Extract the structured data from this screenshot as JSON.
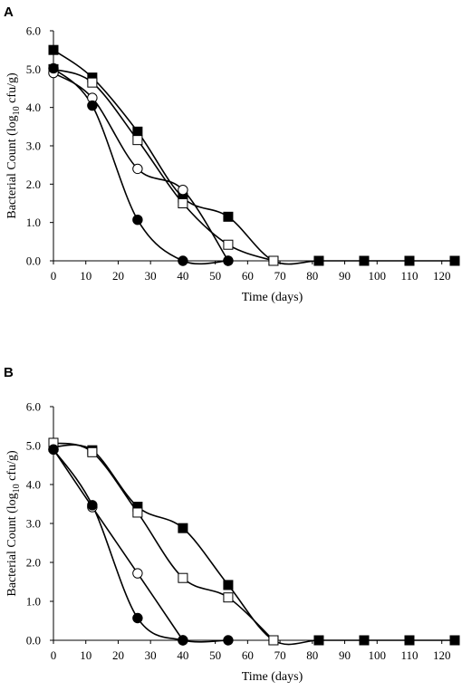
{
  "chart_data": [
    {
      "type": "line",
      "panel_label": "A",
      "xlabel": "Time (days)",
      "ylabel_main": "Bacterial Count (log",
      "ylabel_sub": "10",
      "ylabel_tail": " cfu/g)",
      "xlim": [
        0,
        124
      ],
      "ylim": [
        0,
        6
      ],
      "xticks": [
        "0",
        "10",
        "20",
        "30",
        "40",
        "50",
        "60",
        "70",
        "80",
        "90",
        "100",
        "110",
        "120"
      ],
      "yticks": [
        "0.0",
        "1.0",
        "2.0",
        "3.0",
        "4.0",
        "5.0",
        "6.0"
      ],
      "grid": false,
      "series": [
        {
          "marker": "filled-square",
          "x": [
            0,
            12,
            26,
            40,
            54,
            68,
            82,
            96,
            110,
            124
          ],
          "y": [
            5.5,
            4.78,
            3.37,
            1.65,
            1.15,
            0,
            0,
            0,
            0,
            0
          ]
        },
        {
          "marker": "open-square",
          "x": [
            0,
            12,
            26,
            40,
            54,
            68
          ],
          "y": [
            5.0,
            4.65,
            3.15,
            1.5,
            0.42,
            0
          ]
        },
        {
          "marker": "open-circle",
          "x": [
            0,
            12,
            26,
            40,
            54
          ],
          "y": [
            4.9,
            4.25,
            2.4,
            1.85,
            0
          ]
        },
        {
          "marker": "filled-circle",
          "x": [
            0,
            12,
            26,
            40,
            54
          ],
          "y": [
            5.02,
            4.05,
            1.07,
            0,
            0
          ]
        }
      ]
    },
    {
      "type": "line",
      "panel_label": "B",
      "xlabel": "Time (days)",
      "ylabel_main": "Bacterial Count (log",
      "ylabel_sub": "10",
      "ylabel_tail": " cfu/g)",
      "xlim": [
        0,
        124
      ],
      "ylim": [
        0,
        6
      ],
      "xticks": [
        "0",
        "10",
        "20",
        "30",
        "40",
        "50",
        "60",
        "70",
        "80",
        "90",
        "100",
        "110",
        "120"
      ],
      "yticks": [
        "0.0",
        "1.0",
        "2.0",
        "3.0",
        "4.0",
        "5.0",
        "6.0"
      ],
      "grid": false,
      "series": [
        {
          "marker": "filled-square",
          "x": [
            0,
            12,
            26,
            40,
            54,
            68,
            82,
            96,
            110,
            124
          ],
          "y": [
            4.97,
            4.88,
            3.43,
            2.88,
            1.42,
            0,
            0,
            0,
            0,
            0
          ]
        },
        {
          "marker": "open-square",
          "x": [
            0,
            12,
            26,
            40,
            54,
            68
          ],
          "y": [
            5.07,
            4.83,
            3.28,
            1.6,
            1.1,
            0
          ]
        },
        {
          "marker": "open-circle",
          "x": [
            0,
            12,
            26,
            40
          ],
          "y": [
            4.9,
            3.42,
            1.72,
            0
          ]
        },
        {
          "marker": "filled-circle",
          "x": [
            0,
            12,
            26,
            40,
            54
          ],
          "y": [
            4.9,
            3.47,
            0.57,
            0,
            0
          ]
        }
      ]
    }
  ]
}
